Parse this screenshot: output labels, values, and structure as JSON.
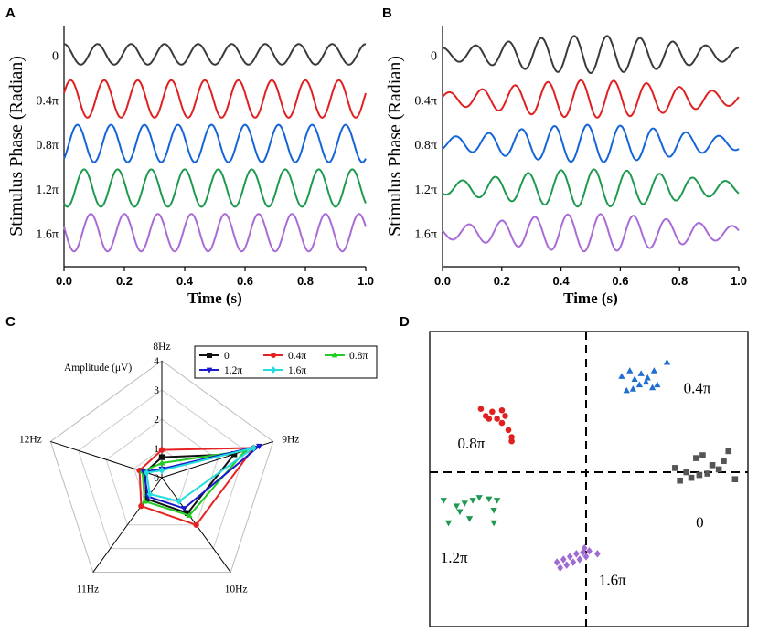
{
  "panels": {
    "A": {
      "label": "A"
    },
    "B": {
      "label": "B"
    },
    "C": {
      "label": "C"
    },
    "D": {
      "label": "D"
    }
  },
  "chart_data": [
    {
      "id": "A",
      "type": "line",
      "ylabel": "Stimulus Phase (Radian)",
      "xlabel": "Time (s)",
      "xlim": [
        0.0,
        1.0
      ],
      "xticks": [
        "0.0",
        "0.2",
        "0.4",
        "0.6",
        "0.8",
        "1.0"
      ],
      "frequency_hz": 9,
      "series": [
        {
          "name": "0",
          "phase_pi": 0.0,
          "color": "#3a3a3a",
          "amplitude_rel": 0.55
        },
        {
          "name": "0.4π",
          "phase_pi": 0.4,
          "color": "#e02020",
          "amplitude_rel": 1.0
        },
        {
          "name": "0.8π",
          "phase_pi": 0.8,
          "color": "#1565d8",
          "amplitude_rel": 1.0
        },
        {
          "name": "1.2π",
          "phase_pi": 1.2,
          "color": "#1e9a50",
          "amplitude_rel": 1.0
        },
        {
          "name": "1.6π",
          "phase_pi": 1.6,
          "color": "#a96bd6",
          "amplitude_rel": 1.0
        }
      ]
    },
    {
      "id": "B",
      "type": "line",
      "ylabel": "Stimulus Phase (Radian)",
      "xlabel": "Time (s)",
      "xlim": [
        0.0,
        1.0
      ],
      "xticks": [
        "0.0",
        "0.2",
        "0.4",
        "0.6",
        "0.8",
        "1.0"
      ],
      "frequency_hz": 9,
      "envelope": "modulated, peak near 0.5 s",
      "series": [
        {
          "name": "0",
          "phase_pi": 0.0,
          "color": "#3a3a3a"
        },
        {
          "name": "0.4π",
          "phase_pi": 0.4,
          "color": "#e02020"
        },
        {
          "name": "0.8π",
          "phase_pi": 0.8,
          "color": "#1565d8"
        },
        {
          "name": "1.2π",
          "phase_pi": 1.2,
          "color": "#1e9a50"
        },
        {
          "name": "1.6π",
          "phase_pi": 1.6,
          "color": "#a96bd6"
        }
      ]
    },
    {
      "id": "C",
      "type": "radar",
      "axis_title": "Amplitude (μV)",
      "axes": [
        "9Hz",
        "10Hz",
        "11Hz",
        "12Hz",
        "8Hz"
      ],
      "rmax": 4,
      "radial_ticks": [
        "0",
        "1",
        "2",
        "3",
        "4"
      ],
      "series": [
        {
          "name": "0",
          "color": "#111111",
          "marker": "square",
          "values": [
            2.6,
            1.5,
            0.9,
            0.6,
            0.7
          ]
        },
        {
          "name": "0.4π",
          "color": "#e52222",
          "marker": "circle",
          "values": [
            3.3,
            2.0,
            1.2,
            0.8,
            0.95
          ]
        },
        {
          "name": "0.8π",
          "color": "#22cc22",
          "marker": "triangle-up",
          "values": [
            3.0,
            1.6,
            1.0,
            0.7,
            0.5
          ]
        },
        {
          "name": "1.2π",
          "color": "#1a1acc",
          "marker": "triangle-down",
          "values": [
            3.5,
            1.3,
            0.8,
            0.65,
            0.3
          ]
        },
        {
          "name": "1.6π",
          "color": "#22dddd",
          "marker": "diamond",
          "values": [
            3.3,
            1.0,
            0.7,
            0.55,
            0.25
          ]
        }
      ]
    },
    {
      "id": "D",
      "type": "scatter",
      "xlim": [
        -1,
        1
      ],
      "ylim": [
        -1,
        1
      ],
      "series": [
        {
          "name": "0",
          "color": "#555555",
          "marker": "square",
          "x": [
            0.55,
            0.62,
            0.65,
            0.7,
            0.75,
            0.78,
            0.82,
            0.85,
            0.92,
            0.68,
            0.58,
            0.88,
            0.72
          ],
          "y": [
            0.03,
            0.0,
            -0.04,
            -0.02,
            -0.01,
            0.05,
            0.02,
            0.08,
            -0.05,
            0.1,
            -0.06,
            0.15,
            0.12
          ]
        },
        {
          "name": "0.4π",
          "color": "#1f6fd0",
          "marker": "triangle-up",
          "x": [
            0.22,
            0.27,
            0.3,
            0.34,
            0.38,
            0.42,
            0.25,
            0.33,
            0.37,
            0.29,
            0.41,
            0.5,
            0.44
          ],
          "y": [
            0.68,
            0.72,
            0.66,
            0.7,
            0.67,
            0.72,
            0.58,
            0.62,
            0.64,
            0.59,
            0.6,
            0.78,
            0.62
          ]
        },
        {
          "name": "0.8π",
          "color": "#e02020",
          "marker": "circle",
          "x": [
            -0.65,
            -0.62,
            -0.58,
            -0.55,
            -0.52,
            -0.5,
            -0.6,
            -0.52,
            -0.48,
            -0.46,
            -0.46
          ],
          "y": [
            0.45,
            0.4,
            0.43,
            0.38,
            0.44,
            0.4,
            0.38,
            0.35,
            0.3,
            0.22,
            0.25
          ]
        },
        {
          "name": "1.2π",
          "color": "#1e9a50",
          "marker": "triangle-down",
          "x": [
            -0.88,
            -0.8,
            -0.75,
            -0.7,
            -0.66,
            -0.6,
            -0.55,
            -0.78,
            -0.72,
            -0.57,
            -0.85,
            -0.57
          ],
          "y": [
            -0.2,
            -0.24,
            -0.22,
            -0.2,
            -0.18,
            -0.19,
            -0.2,
            -0.28,
            -0.33,
            -0.27,
            -0.36,
            -0.36
          ]
        },
        {
          "name": "1.6π",
          "color": "#9f6ad2",
          "marker": "diamond",
          "x": [
            -0.18,
            -0.14,
            -0.1,
            -0.06,
            -0.02,
            0.02,
            0.07,
            -0.12,
            -0.08,
            -0.04,
            0.0,
            -0.16,
            -0.01
          ],
          "y": [
            -0.64,
            -0.62,
            -0.6,
            -0.58,
            -0.57,
            -0.56,
            -0.58,
            -0.66,
            -0.64,
            -0.62,
            -0.6,
            -0.68,
            -0.54
          ]
        }
      ],
      "labels": [
        {
          "text": "0.4π",
          "series": "0.4π"
        },
        {
          "text": "0.8π",
          "series": "0.8π"
        },
        {
          "text": "0",
          "series": "0"
        },
        {
          "text": "1.2π",
          "series": "1.2π"
        },
        {
          "text": "1.6π",
          "series": "1.6π"
        }
      ]
    }
  ]
}
